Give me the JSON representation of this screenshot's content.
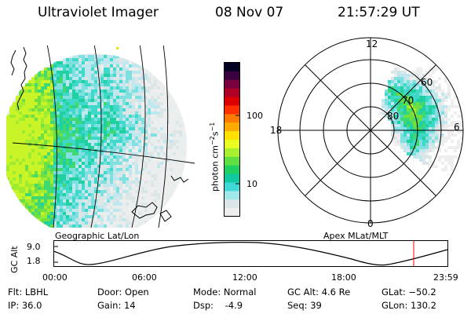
{
  "header": {
    "instrument": "Ultraviolet Imager",
    "date": "08 Nov 07",
    "time": "21:57:29 UT"
  },
  "geo_panel": {
    "label": "Geographic Lat/Lon"
  },
  "colorbar": {
    "unit_prefix": "photon cm",
    "unit_sup1": "−2",
    "unit_mid": "s",
    "unit_sup2": "−1",
    "ticks": [
      "100",
      "10"
    ],
    "scale": "log",
    "colors": [
      "#000020",
      "#3a0040",
      "#7a0040",
      "#b00028",
      "#dd0000",
      "#ff3000",
      "#ff7a00",
      "#ffaa00",
      "#ffe000",
      "#e8ff20",
      "#a8f030",
      "#60e040",
      "#20d060",
      "#10c8a0",
      "#40d8d8",
      "#a0e8ec",
      "#dde6e6",
      "#eeeeee"
    ]
  },
  "polar_panel": {
    "label": "Apex MLat/MLT",
    "mlt_labels": {
      "top": "12",
      "left": "18",
      "right": "6",
      "bottom": "0"
    },
    "lat_labels": [
      "60",
      "70",
      "80"
    ]
  },
  "altitude_plot": {
    "ylabel": "GC Alt",
    "yticks": [
      "9.0",
      "1.8"
    ],
    "xticks": [
      "00:00",
      "06:00",
      "12:00",
      "18:00",
      "23:59"
    ],
    "marker_color": "#ff0000"
  },
  "status": {
    "flt": "Flt: LBHL",
    "ip": "IP: 36.0",
    "door": "Door: Open",
    "gain": "Gain: 14",
    "mode": "Mode: Normal",
    "dsp": "Dsp:    -4.9",
    "gcalt": "GC Alt: 4.6 Re",
    "seq": "Seq: 39",
    "glat": "GLat: −50.2",
    "glon": "GLon: 130.2"
  }
}
